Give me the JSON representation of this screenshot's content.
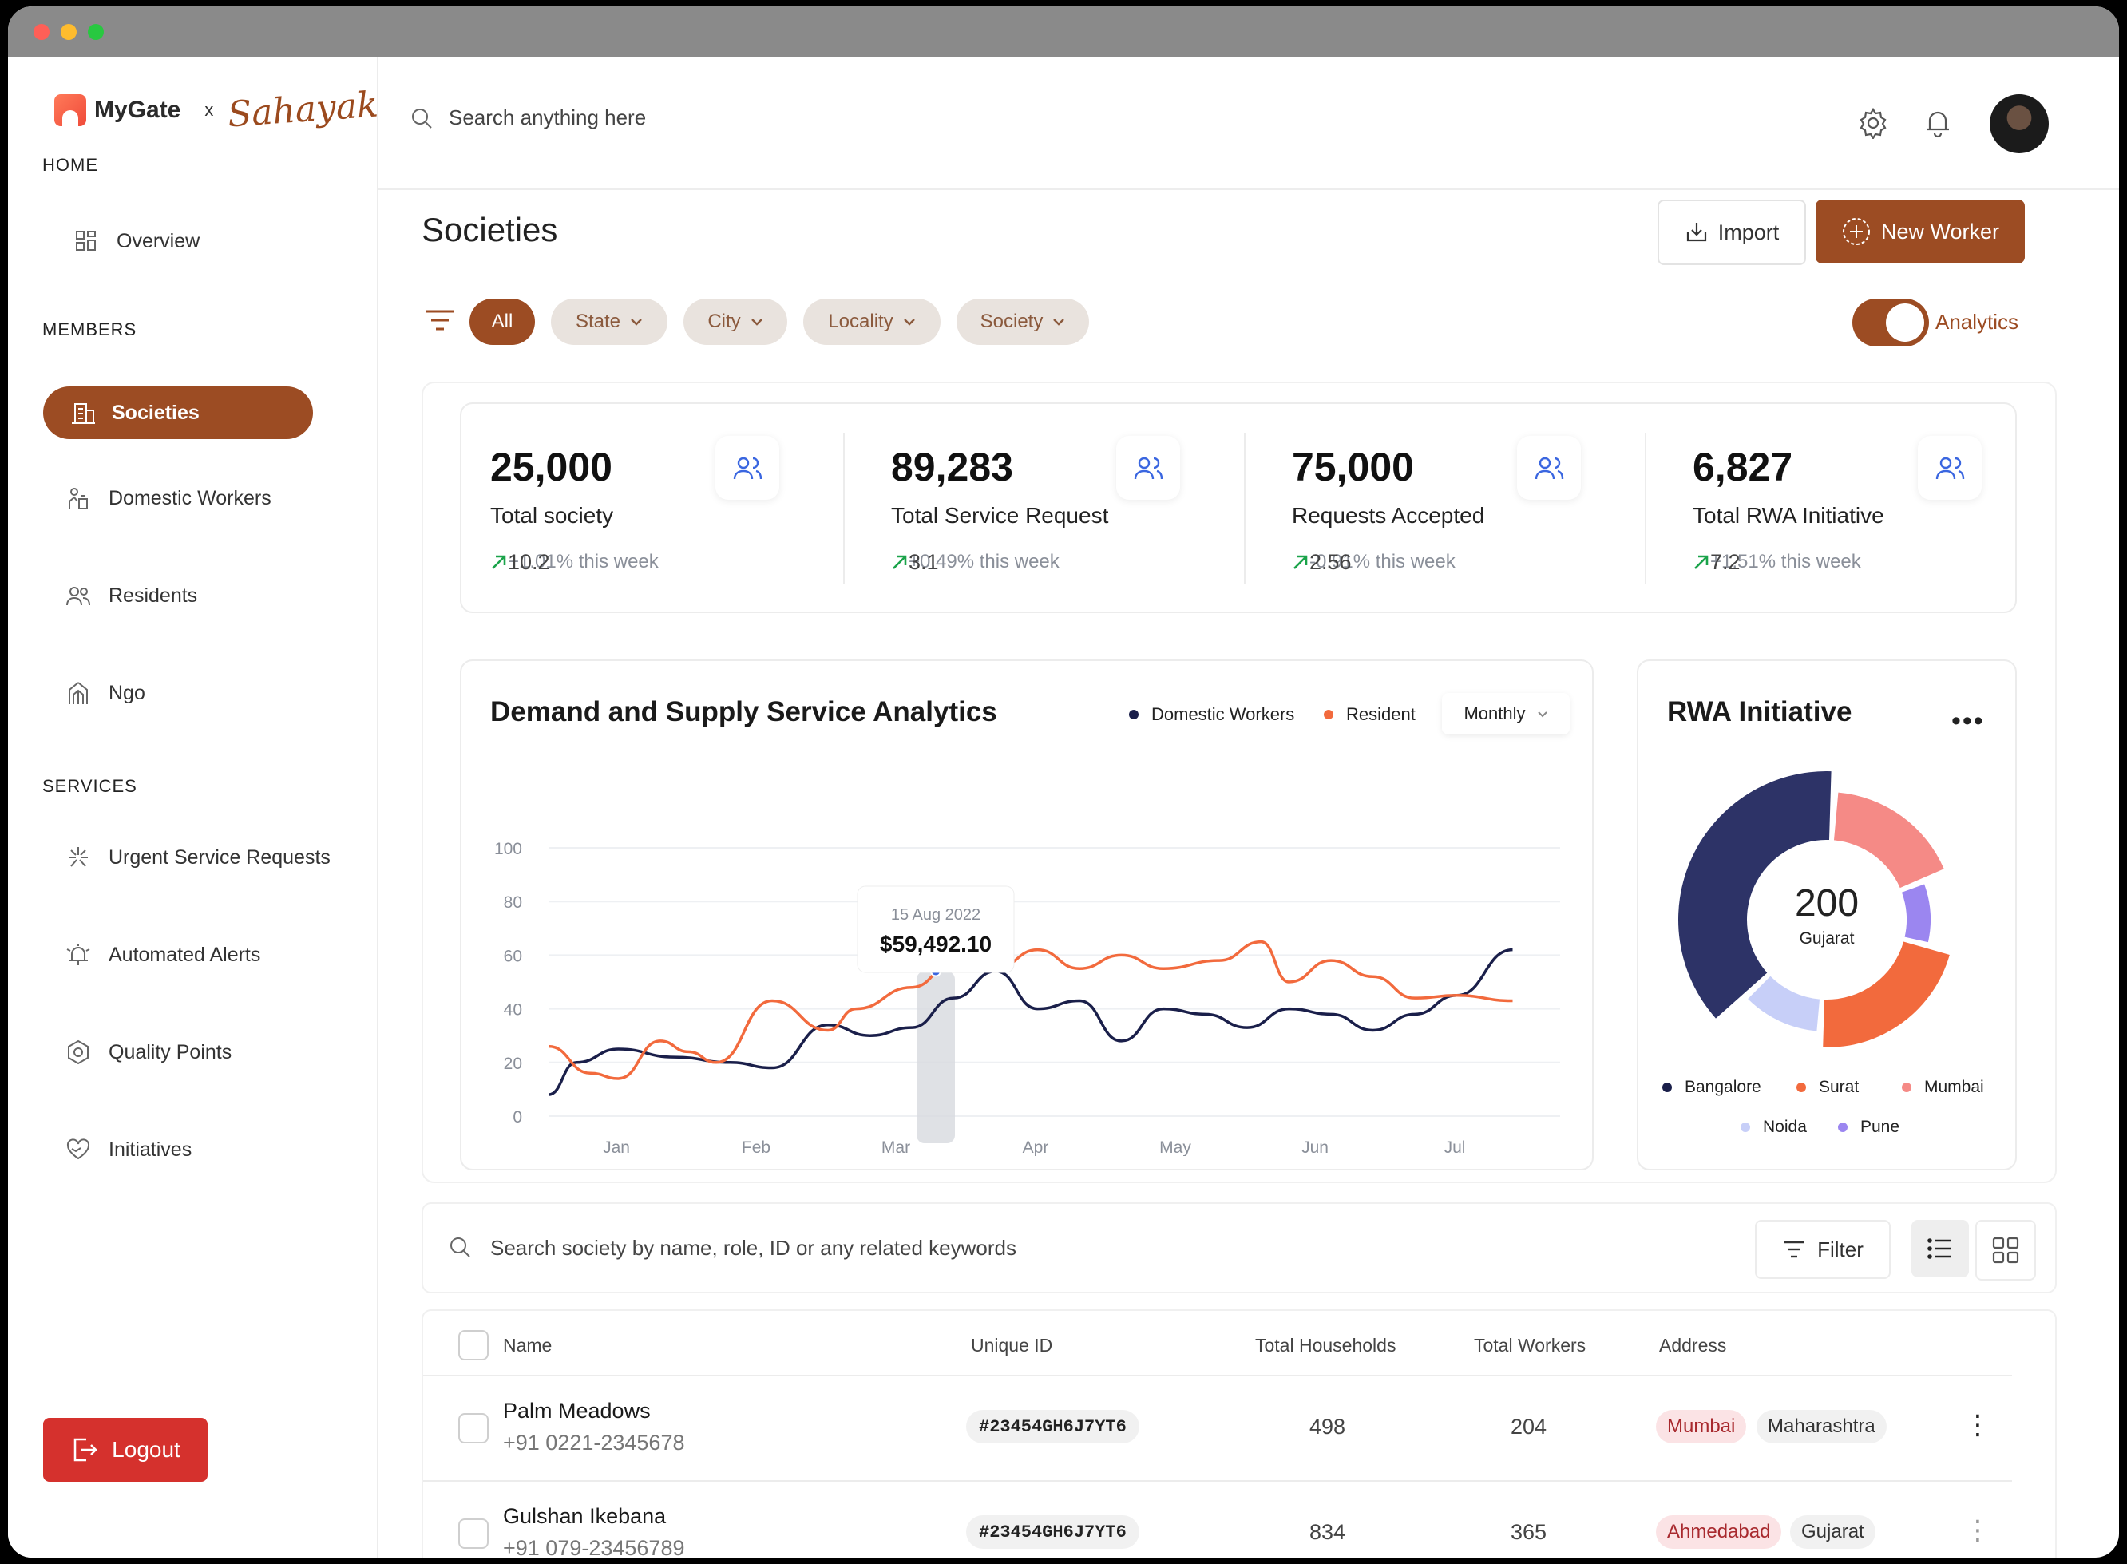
{
  "brand": {
    "name": "MyGate",
    "x": "x",
    "partner": "Sahayak"
  },
  "sidebar": {
    "sections": [
      "HOME",
      "MEMBERS",
      "SERVICES"
    ],
    "items": [
      {
        "label": "Overview",
        "icon": "grid-icon"
      },
      {
        "label": "Societies",
        "icon": "building-icon",
        "active": true
      },
      {
        "label": "Domestic Workers",
        "icon": "workers-icon"
      },
      {
        "label": "Residents",
        "icon": "users-icon"
      },
      {
        "label": "Ngo",
        "icon": "ngo-icon"
      },
      {
        "label": "Urgent Service Requests",
        "icon": "urgent-icon"
      },
      {
        "label": "Automated Alerts",
        "icon": "alarm-icon"
      },
      {
        "label": "Quality Points",
        "icon": "hexagon-icon"
      },
      {
        "label": "Initiatives",
        "icon": "heart-hand-icon"
      }
    ],
    "logout": "Logout"
  },
  "topbar": {
    "search_placeholder": "Search anything here"
  },
  "page": {
    "title": "Societies",
    "import_label": "Import",
    "new_worker_label": "New Worker"
  },
  "filters": {
    "all": "All",
    "chips": [
      "State",
      "City",
      "Locality",
      "Society"
    ],
    "analytics_label": "Analytics",
    "analytics_on": true
  },
  "stats": [
    {
      "value": "25,000",
      "label": "Total society",
      "delta": "10.2",
      "change": "+1.01% this week"
    },
    {
      "value": "89,283",
      "label": "Total Service Request",
      "delta": "3.1",
      "change": "+0.49% this week"
    },
    {
      "value": "75,000",
      "label": "Requests Accepted",
      "delta": "2.56",
      "change": "-0.91% this week"
    },
    {
      "value": "6,827",
      "label": "Total RWA Initiative",
      "delta": "7.2",
      "change": "+1.51% this week"
    }
  ],
  "analytics": {
    "title": "Demand and Supply Service  Analytics",
    "legend": [
      "Domestic Workers",
      "Resident"
    ],
    "period": "Monthly",
    "tooltip_date": "15 Aug 2022",
    "tooltip_value": "$59,492.10"
  },
  "chart_data": {
    "type": "line",
    "categories": [
      "Jan",
      "Feb",
      "Mar",
      "Apr",
      "May",
      "Jun",
      "Jul"
    ],
    "ylim": [
      0,
      100
    ],
    "yticks": [
      0,
      20,
      40,
      60,
      80,
      100
    ],
    "grid": true,
    "legend_position": "top-right",
    "colors": {
      "Domestic Workers": "#1a1f4a",
      "Resident": "#f26a3d"
    },
    "series": [
      {
        "name": "Domestic Workers",
        "x": [
          0,
          0.2,
          0.5,
          0.9,
          1.3,
          1.6,
          2.0,
          2.3,
          2.6,
          2.9,
          3.2,
          3.5,
          3.8,
          4.1,
          4.4,
          4.7,
          5.0,
          5.3,
          5.6,
          5.9,
          6.2,
          6.5,
          6.9
        ],
        "values": [
          8,
          20,
          25,
          22,
          20,
          18,
          34,
          30,
          33,
          44,
          54,
          40,
          43,
          28,
          40,
          38,
          33,
          40,
          38,
          32,
          38,
          45,
          62
        ]
      },
      {
        "name": "Resident",
        "x": [
          0,
          0.3,
          0.5,
          0.8,
          1.0,
          1.2,
          1.6,
          2.0,
          2.2,
          2.6,
          2.9,
          3.2,
          3.5,
          3.8,
          4.1,
          4.4,
          4.8,
          5.1,
          5.3,
          5.6,
          5.9,
          6.2,
          6.5,
          6.9
        ],
        "values": [
          26,
          16,
          14,
          28,
          24,
          20,
          43,
          32,
          40,
          48,
          57,
          55,
          62,
          55,
          60,
          55,
          58,
          65,
          50,
          58,
          52,
          44,
          45,
          43
        ]
      }
    ]
  },
  "rwa": {
    "title": "RWA Initiative",
    "menu": "•••",
    "center_value": "200",
    "center_label": "Gujarat",
    "legend": [
      "Bangalore",
      "Surat",
      "Mumbai",
      "Noida",
      "Pune"
    ],
    "colors": [
      "#2d3367",
      "#f26a3d",
      "#f58a86",
      "#c7cff8",
      "#9b86f0"
    ],
    "values": [
      38,
      22,
      18,
      12,
      10
    ]
  },
  "table_search": {
    "placeholder": "Search society by name, role, ID or any related keywords",
    "filter_label": "Filter"
  },
  "table": {
    "columns": [
      "Name",
      "Unique ID",
      "Total Households",
      "Total Workers",
      "Address"
    ],
    "rows": [
      {
        "name": "Palm Meadows",
        "phone": "+91 0221-2345678",
        "id": "#23454GH6J7YT6",
        "households": "498",
        "workers": "204",
        "city": "Mumbai",
        "state": "Maharashtra"
      },
      {
        "name": "Gulshan Ikebana",
        "phone": "+91 079-23456789",
        "id": "#23454GH6J7YT6",
        "households": "834",
        "workers": "365",
        "city": "Ahmedabad",
        "state": "Gujarat"
      }
    ]
  }
}
